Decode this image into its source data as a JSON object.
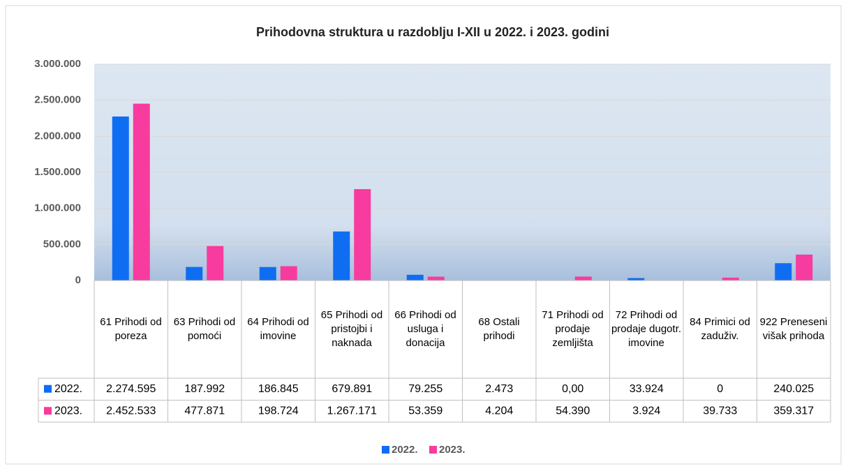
{
  "chart_data": {
    "type": "bar",
    "title": "Prihodovna struktura  u razdoblju I-XII u 2022. i 2023. godini",
    "categories": [
      "61 Prihodi od poreza",
      "63 Prihodi od pomoći",
      "64 Prihodi od imovine",
      "65 Prihodi od pristojbi i naknada",
      "66 Prihodi od usluga i donacija",
      "68 Ostali prihodi",
      "71 Prihodi od prodaje zemljišta",
      "72 Prihodi od prodaje dugotr. imovine",
      "84 Primici od zaduživ.",
      "922 Preneseni višak prihoda"
    ],
    "series": [
      {
        "name": "2022.",
        "color": "#0f6df2",
        "values": [
          2274595,
          187992,
          186845,
          679891,
          79255,
          2473,
          0,
          33924,
          0,
          240025
        ],
        "value_labels": [
          "2.274.595",
          "187.992",
          "186.845",
          "679.891",
          "79.255",
          "2.473",
          "0,00",
          "33.924",
          "0",
          "240.025"
        ]
      },
      {
        "name": "2023.",
        "color": "#f73b9f",
        "values": [
          2452533,
          477871,
          198724,
          1267171,
          53359,
          4204,
          54390,
          3924,
          39733,
          359317
        ],
        "value_labels": [
          "2.452.533",
          "477.871",
          "198.724",
          "1.267.171",
          "53.359",
          "4.204",
          "54.390",
          "3.924",
          "39.733",
          "359.317"
        ]
      }
    ],
    "ylim": [
      0,
      3000000
    ],
    "yticks": [
      0,
      {
        "value": 500000,
        "label": "500.000"
      },
      {
        "value": 1000000,
        "label": "1.000.000"
      },
      {
        "value": 1500000,
        "label": "1.500.000"
      },
      {
        "value": 2000000,
        "label": "2.000.000"
      },
      {
        "value": 2500000,
        "label": "2.500.000"
      },
      {
        "value": 3000000,
        "label": "3.000.000"
      }
    ],
    "grid": true,
    "legend": "bottom"
  }
}
